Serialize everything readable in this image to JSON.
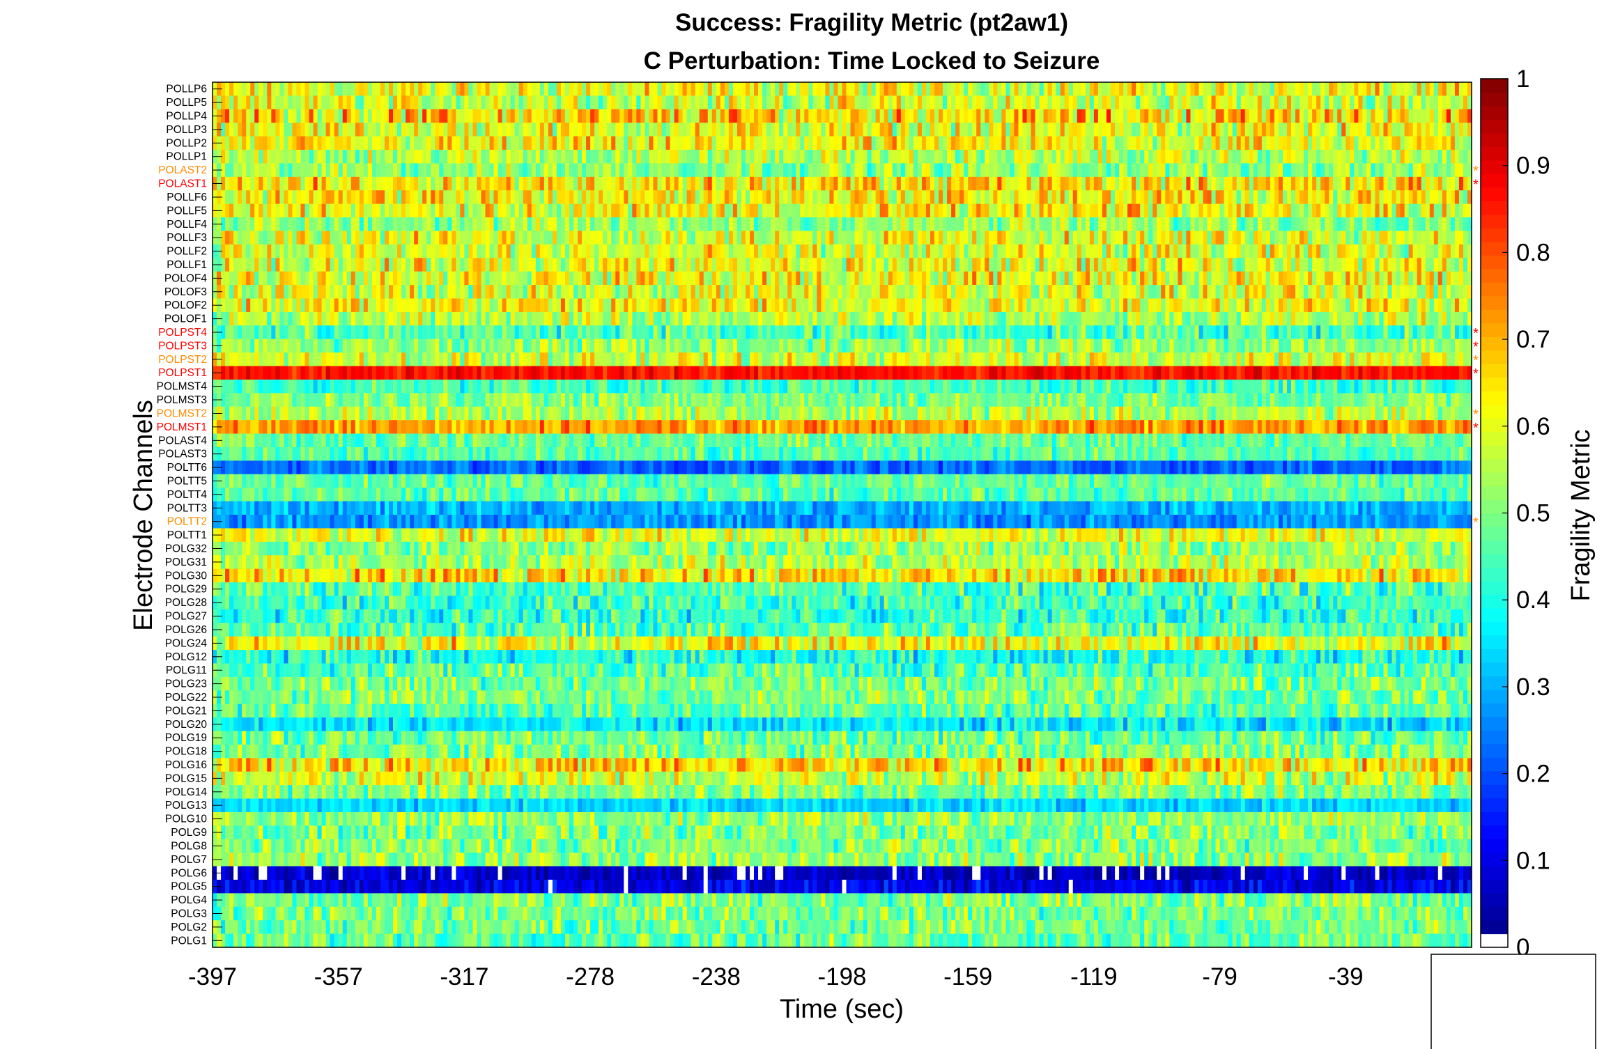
{
  "chart_data": {
    "type": "heatmap",
    "title": "Success: Fragility Metric (pt2aw1)",
    "subtitle": "C Perturbation:  Time Locked to Seizure",
    "xlabel": "Time (sec)",
    "ylabel": "Electrode Channels",
    "colorbar_label": "Fragility Metric",
    "colormap": "jet",
    "xlim": [
      -397,
      0
    ],
    "x_ticks": [
      "-397",
      "-357",
      "-317",
      "-278",
      "-238",
      "-198",
      "-159",
      "-119",
      "-79",
      "-39"
    ],
    "clim": [
      0,
      1
    ],
    "colorbar_ticks": [
      "0",
      "0.1",
      "0.2",
      "0.3",
      "0.4",
      "0.5",
      "0.6",
      "0.7",
      "0.8",
      "0.9",
      "1"
    ],
    "channels": [
      {
        "name": "POLLP6",
        "mean": 0.6,
        "spread": 0.12
      },
      {
        "name": "POLLP5",
        "mean": 0.58,
        "spread": 0.12
      },
      {
        "name": "POLLP4",
        "mean": 0.66,
        "spread": 0.14
      },
      {
        "name": "POLLP3",
        "mean": 0.6,
        "spread": 0.12
      },
      {
        "name": "POLLP2",
        "mean": 0.61,
        "spread": 0.12
      },
      {
        "name": "POLLP1",
        "mean": 0.55,
        "spread": 0.1
      },
      {
        "name": "POLAST2",
        "mean": 0.52,
        "spread": 0.1,
        "label_color": "#ff8c00",
        "marker": "*"
      },
      {
        "name": "POLAST1",
        "mean": 0.65,
        "spread": 0.12,
        "label_color": "#ff0000",
        "marker": "*"
      },
      {
        "name": "POLLF6",
        "mean": 0.63,
        "spread": 0.12
      },
      {
        "name": "POLLF5",
        "mean": 0.62,
        "spread": 0.12
      },
      {
        "name": "POLLF4",
        "mean": 0.52,
        "spread": 0.1
      },
      {
        "name": "POLLF3",
        "mean": 0.6,
        "spread": 0.12
      },
      {
        "name": "POLLF2",
        "mean": 0.58,
        "spread": 0.12
      },
      {
        "name": "POLLF1",
        "mean": 0.6,
        "spread": 0.12
      },
      {
        "name": "POLOF4",
        "mean": 0.61,
        "spread": 0.12
      },
      {
        "name": "POLOF3",
        "mean": 0.59,
        "spread": 0.12
      },
      {
        "name": "POLOF2",
        "mean": 0.62,
        "spread": 0.12
      },
      {
        "name": "POLOF1",
        "mean": 0.55,
        "spread": 0.1
      },
      {
        "name": "POLPST4",
        "mean": 0.45,
        "spread": 0.1,
        "label_color": "#ff0000",
        "marker": "*"
      },
      {
        "name": "POLPST3",
        "mean": 0.52,
        "spread": 0.1,
        "label_color": "#ff0000",
        "marker": "*"
      },
      {
        "name": "POLPST2",
        "mean": 0.58,
        "spread": 0.1,
        "label_color": "#ff8c00",
        "marker": "*"
      },
      {
        "name": "POLPST1",
        "mean": 0.86,
        "spread": 0.05,
        "label_color": "#ff0000",
        "marker": "*"
      },
      {
        "name": "POLMST4",
        "mean": 0.44,
        "spread": 0.08
      },
      {
        "name": "POLMST3",
        "mean": 0.5,
        "spread": 0.08
      },
      {
        "name": "POLMST2",
        "mean": 0.55,
        "spread": 0.1,
        "label_color": "#ff8c00",
        "marker": "*"
      },
      {
        "name": "POLMST1",
        "mean": 0.72,
        "spread": 0.08,
        "label_color": "#ff0000",
        "marker": "*"
      },
      {
        "name": "POLAST4",
        "mean": 0.48,
        "spread": 0.08
      },
      {
        "name": "POLAST3",
        "mean": 0.46,
        "spread": 0.08
      },
      {
        "name": "POLTT6",
        "mean": 0.23,
        "spread": 0.06
      },
      {
        "name": "POLTT5",
        "mean": 0.47,
        "spread": 0.08
      },
      {
        "name": "POLTT4",
        "mean": 0.46,
        "spread": 0.08
      },
      {
        "name": "POLTT3",
        "mean": 0.3,
        "spread": 0.06
      },
      {
        "name": "POLTT2",
        "mean": 0.27,
        "spread": 0.06,
        "label_color": "#ff8c00",
        "marker": "*"
      },
      {
        "name": "POLTT1",
        "mean": 0.6,
        "spread": 0.1
      },
      {
        "name": "POLG32",
        "mean": 0.52,
        "spread": 0.1
      },
      {
        "name": "POLG31",
        "mean": 0.55,
        "spread": 0.1
      },
      {
        "name": "POLG30",
        "mean": 0.66,
        "spread": 0.12
      },
      {
        "name": "POLG29",
        "mean": 0.45,
        "spread": 0.1
      },
      {
        "name": "POLG28",
        "mean": 0.43,
        "spread": 0.1
      },
      {
        "name": "POLG27",
        "mean": 0.42,
        "spread": 0.1
      },
      {
        "name": "POLG26",
        "mean": 0.46,
        "spread": 0.1
      },
      {
        "name": "POLG24",
        "mean": 0.62,
        "spread": 0.12
      },
      {
        "name": "POLG12",
        "mean": 0.4,
        "spread": 0.1
      },
      {
        "name": "POLG11",
        "mean": 0.46,
        "spread": 0.1
      },
      {
        "name": "POLG23",
        "mean": 0.5,
        "spread": 0.1
      },
      {
        "name": "POLG22",
        "mean": 0.5,
        "spread": 0.1
      },
      {
        "name": "POLG21",
        "mean": 0.47,
        "spread": 0.1
      },
      {
        "name": "POLG20",
        "mean": 0.35,
        "spread": 0.08
      },
      {
        "name": "POLG19",
        "mean": 0.48,
        "spread": 0.1
      },
      {
        "name": "POLG18",
        "mean": 0.5,
        "spread": 0.1
      },
      {
        "name": "POLG16",
        "mean": 0.66,
        "spread": 0.12
      },
      {
        "name": "POLG15",
        "mean": 0.58,
        "spread": 0.12
      },
      {
        "name": "POLG14",
        "mean": 0.5,
        "spread": 0.1
      },
      {
        "name": "POLG13",
        "mean": 0.34,
        "spread": 0.06
      },
      {
        "name": "POLG10",
        "mean": 0.52,
        "spread": 0.1
      },
      {
        "name": "POLG9",
        "mean": 0.5,
        "spread": 0.1
      },
      {
        "name": "POLG8",
        "mean": 0.5,
        "spread": 0.1
      },
      {
        "name": "POLG7",
        "mean": 0.52,
        "spread": 0.1
      },
      {
        "name": "POLG6",
        "mean": 0.06,
        "spread": 0.06
      },
      {
        "name": "POLG5",
        "mean": 0.1,
        "spread": 0.07
      },
      {
        "name": "POLG4",
        "mean": 0.5,
        "spread": 0.1
      },
      {
        "name": "POLG3",
        "mean": 0.5,
        "spread": 0.1
      },
      {
        "name": "POLG2",
        "mean": 0.49,
        "spread": 0.1
      },
      {
        "name": "POLG1",
        "mean": 0.48,
        "spread": 0.1
      }
    ]
  }
}
